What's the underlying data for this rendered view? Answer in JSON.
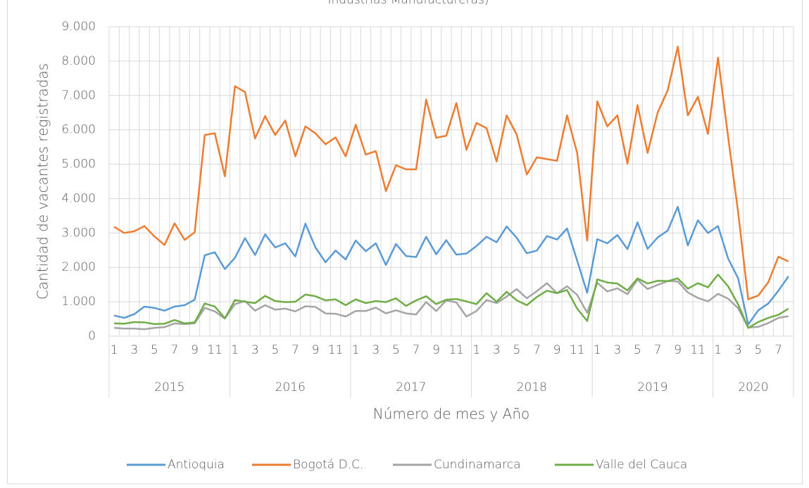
{
  "chart_data": {
    "type": "line",
    "title": "Industrias Manufactureras)",
    "y_label": "Cantidad de vacantes registradas",
    "x_label": "Número de mes y Año",
    "groups": [
      {
        "label": "2015",
        "categories": [
          "1",
          null,
          "3",
          null,
          "5",
          null,
          "7",
          null,
          "9",
          null,
          "11",
          null
        ]
      },
      {
        "label": "2016",
        "categories": [
          "1",
          null,
          "3",
          null,
          "5",
          null,
          "7",
          null,
          "9",
          null,
          "11",
          null
        ]
      },
      {
        "label": "2017",
        "categories": [
          "1",
          null,
          "3",
          null,
          "5",
          null,
          "7",
          null,
          "9",
          null,
          "11",
          null
        ]
      },
      {
        "label": "2018",
        "categories": [
          "1",
          null,
          "3",
          null,
          "5",
          null,
          "7",
          null,
          "9",
          null,
          "11",
          null
        ]
      },
      {
        "label": "2019",
        "categories": [
          "1",
          null,
          "3",
          null,
          "5",
          null,
          "7",
          null,
          "9",
          null,
          "11",
          null
        ]
      },
      {
        "label": "2020",
        "categories": [
          "1",
          null,
          "3",
          null,
          "5",
          null,
          "7",
          null
        ]
      }
    ],
    "ylim": [
      0,
      9000
    ],
    "yticks": [
      0,
      {
        "value": 1000,
        "label": "1.000"
      },
      {
        "value": 2000,
        "label": "2.000"
      },
      {
        "value": 3000,
        "label": "3.000"
      },
      {
        "value": 4000,
        "label": "4.000"
      },
      {
        "value": 5000,
        "label": "5.000"
      },
      {
        "value": 6000,
        "label": "6.000"
      },
      {
        "value": 7000,
        "label": "7.000"
      },
      {
        "value": 8000,
        "label": "8.000"
      },
      {
        "value": 9000,
        "label": "9.000"
      }
    ],
    "grid": true,
    "legend": "bottom",
    "series": [
      {
        "name": "Antioquia",
        "color": "#5b9bd5",
        "values": [
          600,
          530,
          640,
          860,
          820,
          740,
          860,
          900,
          1060,
          2350,
          2440,
          1950,
          2280,
          2850,
          2360,
          2960,
          2580,
          2700,
          2320,
          3270,
          2580,
          2150,
          2490,
          2230,
          2780,
          2470,
          2700,
          2070,
          2680,
          2330,
          2300,
          2890,
          2380,
          2790,
          2370,
          2400,
          2620,
          2890,
          2730,
          3190,
          2860,
          2410,
          2490,
          2910,
          2810,
          3130,
          2200,
          1260,
          2820,
          2700,
          2940,
          2530,
          3310,
          2540,
          2870,
          3070,
          3760,
          2640,
          3370,
          3000,
          3200,
          2260,
          1680,
          340,
          750,
          950,
          1320,
          1740
        ]
      },
      {
        "name": "Bogotá D.C.",
        "color": "#ed7d31",
        "values": [
          3180,
          3000,
          3050,
          3200,
          2900,
          2650,
          3280,
          2800,
          3020,
          5850,
          5900,
          4650,
          7270,
          7100,
          5750,
          6400,
          5850,
          6270,
          5230,
          6100,
          5900,
          5580,
          5780,
          5230,
          6150,
          5280,
          5380,
          4220,
          4970,
          4850,
          4850,
          6880,
          5770,
          5830,
          6780,
          5420,
          6200,
          6050,
          5080,
          6420,
          5860,
          4700,
          5200,
          5150,
          5100,
          6420,
          5330,
          2780,
          6830,
          6100,
          6420,
          5020,
          6720,
          5330,
          6500,
          7150,
          8420,
          6420,
          6960,
          5880,
          8100,
          5800,
          3600,
          1070,
          1180,
          1570,
          2310,
          2170
        ]
      },
      {
        "name": "Cundinamarca",
        "color": "#a5a5a5",
        "values": [
          240,
          220,
          220,
          200,
          240,
          260,
          370,
          350,
          370,
          820,
          720,
          510,
          930,
          1020,
          740,
          900,
          770,
          800,
          720,
          870,
          850,
          660,
          650,
          570,
          730,
          730,
          830,
          660,
          750,
          660,
          630,
          990,
          730,
          1040,
          980,
          570,
          730,
          1050,
          960,
          1150,
          1370,
          1100,
          1310,
          1540,
          1250,
          1450,
          1200,
          680,
          1550,
          1300,
          1390,
          1220,
          1640,
          1370,
          1490,
          1600,
          1590,
          1270,
          1110,
          1010,
          1230,
          1090,
          810,
          250,
          270,
          380,
          530,
          580
        ]
      },
      {
        "name": "Valle del Cauca",
        "color": "#70ad47",
        "values": [
          370,
          360,
          410,
          400,
          350,
          360,
          470,
          370,
          400,
          950,
          860,
          520,
          1050,
          1000,
          960,
          1170,
          1020,
          990,
          1000,
          1210,
          1160,
          1040,
          1070,
          900,
          1070,
          960,
          1020,
          990,
          1100,
          880,
          1040,
          1160,
          930,
          1060,
          1080,
          1010,
          930,
          1250,
          1000,
          1290,
          1040,
          900,
          1140,
          1320,
          1250,
          1340,
          800,
          440,
          1650,
          1560,
          1530,
          1330,
          1680,
          1530,
          1610,
          1600,
          1680,
          1380,
          1540,
          1420,
          1790,
          1450,
          920,
          240,
          410,
          530,
          620,
          800
        ]
      }
    ]
  }
}
